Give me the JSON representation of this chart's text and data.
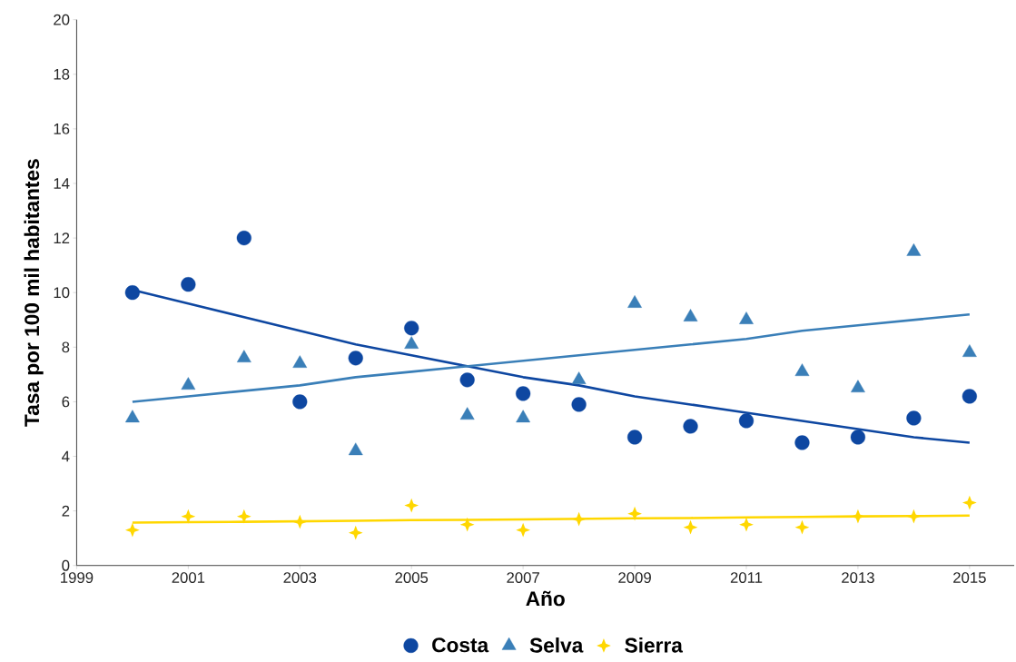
{
  "chart_data": {
    "type": "scatter",
    "xlabel": "Año",
    "ylabel": "Tasa por 100 mil habitantes",
    "x": [
      2000,
      2001,
      2002,
      2003,
      2004,
      2005,
      2006,
      2007,
      2008,
      2009,
      2010,
      2011,
      2012,
      2013,
      2014,
      2015
    ],
    "series": [
      {
        "name": "Costa",
        "color": "#0e47a1",
        "marker": "circle",
        "values": [
          10.0,
          10.3,
          12.0,
          6.0,
          7.6,
          8.7,
          6.8,
          6.3,
          5.9,
          4.7,
          5.1,
          5.3,
          4.5,
          4.7,
          5.4,
          6.2
        ]
      },
      {
        "name": "Selva",
        "color": "#3a7fb8",
        "marker": "triangle",
        "values": [
          5.4,
          6.6,
          7.6,
          7.4,
          4.2,
          8.1,
          5.5,
          5.4,
          6.8,
          9.6,
          9.1,
          9.0,
          7.1,
          6.5,
          11.5,
          7.8
        ]
      },
      {
        "name": "Sierra",
        "color": "#ffd700",
        "marker": "star",
        "values": [
          1.3,
          1.8,
          1.8,
          1.6,
          1.2,
          2.2,
          1.5,
          1.3,
          1.7,
          1.9,
          1.4,
          1.5,
          1.4,
          1.8,
          1.8,
          2.3
        ]
      },
      {
        "type": "line",
        "color": "#0e47a1",
        "values": [
          10.1,
          9.6,
          9.1,
          8.6,
          8.1,
          7.7,
          7.3,
          6.9,
          6.6,
          6.2,
          5.9,
          5.6,
          5.3,
          5.0,
          4.7,
          4.5
        ]
      },
      {
        "type": "line",
        "color": "#3a7fb8",
        "values": [
          6.0,
          6.2,
          6.4,
          6.6,
          6.9,
          7.1,
          7.3,
          7.5,
          7.7,
          7.9,
          8.1,
          8.3,
          8.6,
          8.8,
          9.0,
          9.2
        ]
      },
      {
        "type": "line",
        "color": "#ffd700",
        "values": [
          1.57,
          1.59,
          1.6,
          1.62,
          1.64,
          1.66,
          1.67,
          1.69,
          1.71,
          1.73,
          1.74,
          1.76,
          1.78,
          1.8,
          1.81,
          1.83
        ]
      }
    ],
    "xlim": [
      1999,
      2015.8
    ],
    "xticks": [
      1999,
      2001,
      2003,
      2005,
      2007,
      2009,
      2011,
      2013,
      2015
    ],
    "ylim": [
      0,
      20
    ],
    "yticks": [
      0,
      2,
      4,
      6,
      8,
      10,
      12,
      14,
      16,
      18,
      20
    ],
    "grid": false,
    "legend": "bottom"
  }
}
